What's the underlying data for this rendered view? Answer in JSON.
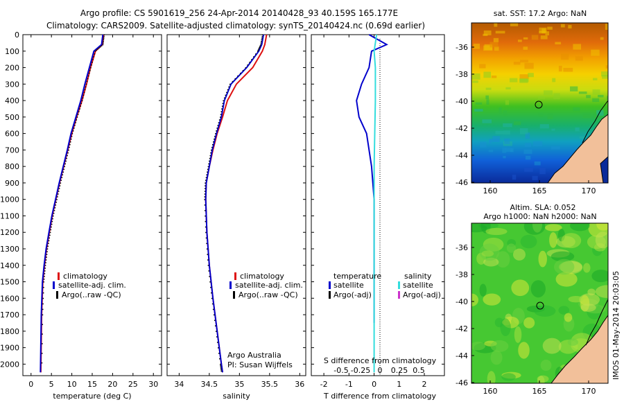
{
  "header": {
    "line1": "Argo profile: CS 5901619_256 24-Apr-2014 20140428_93 40.159S 165.177E",
    "line2": "Climatology: CARS2009. Satellite-adjusted climatology: synTS_20140424.nc (0.69d earlier)"
  },
  "side_stamp": "IMOS 01-May-2014 20:03:05",
  "colors": {
    "climatology": "#dd1111",
    "satellite": "#0000cc",
    "argo": "#000000",
    "satellite_salinity": "#33dddd",
    "argo_salinity": "#cc33cc",
    "land": "#f2c09a",
    "coast": "#000000"
  },
  "chart_data": [
    {
      "type": "line",
      "xlabel": "temperature (deg C)",
      "ylabel": "",
      "xlim": [
        -2,
        32
      ],
      "ylim": [
        2070,
        0
      ],
      "xticks": [
        0,
        5,
        10,
        15,
        20,
        25,
        30
      ],
      "yticks": [
        0,
        100,
        200,
        300,
        400,
        500,
        600,
        700,
        800,
        900,
        1000,
        1100,
        1200,
        1300,
        1400,
        1500,
        1600,
        1700,
        1800,
        1900,
        2000
      ],
      "legend": [
        "climatology",
        "satellite-adj. clim.",
        "Argo(..raw -QC)"
      ],
      "series": [
        {
          "name": "climatology",
          "x": [
            17.8,
            17.5,
            15.8,
            14.6,
            13.6,
            12.5,
            11.2,
            10.0,
            9.0,
            8.0,
            7.0,
            6.1,
            5.2,
            4.5,
            3.8,
            3.3,
            2.9,
            2.6,
            2.4
          ],
          "y": [
            0,
            60,
            100,
            200,
            300,
            400,
            500,
            600,
            700,
            800,
            900,
            1000,
            1100,
            1200,
            1300,
            1400,
            1500,
            1700,
            2050
          ]
        },
        {
          "name": "satellite-adj. clim.",
          "x": [
            17.6,
            17.3,
            15.4,
            14.3,
            13.2,
            12.2,
            11.0,
            9.8,
            8.9,
            7.9,
            6.9,
            6.0,
            5.1,
            4.4,
            3.7,
            3.2,
            2.8,
            2.5,
            2.3
          ],
          "y": [
            0,
            60,
            100,
            200,
            300,
            400,
            500,
            600,
            700,
            800,
            900,
            1000,
            1100,
            1200,
            1300,
            1400,
            1500,
            1700,
            2050
          ]
        }
      ]
    },
    {
      "type": "line",
      "xlabel": "salinity",
      "ylabel": "",
      "xlim": [
        33.8,
        36.1
      ],
      "ylim": [
        2070,
        0
      ],
      "xticks": [
        34,
        34.5,
        35,
        35.5,
        36
      ],
      "tick_labels": [
        "34",
        "34.5",
        "35",
        "35.5",
        "36"
      ],
      "legend": [
        "climatology",
        "satellite-adj. clim.",
        "Argo(..raw -QC)"
      ],
      "annotation": [
        "Argo Australia",
        "PI: Susan Wijffels"
      ],
      "series": [
        {
          "name": "climatology",
          "x": [
            35.45,
            35.42,
            35.38,
            35.22,
            34.95,
            34.8,
            34.72,
            34.63,
            34.56,
            34.5,
            34.45,
            34.44,
            34.46,
            34.5,
            34.56,
            34.63,
            34.7,
            34.72
          ],
          "y": [
            0,
            60,
            100,
            200,
            300,
            400,
            500,
            600,
            700,
            800,
            900,
            1000,
            1200,
            1400,
            1600,
            1800,
            2000,
            2050
          ]
        },
        {
          "name": "satellite-adj. clim.",
          "x": [
            35.4,
            35.37,
            35.32,
            35.12,
            34.86,
            34.75,
            34.7,
            34.62,
            34.55,
            34.5,
            34.45,
            34.44,
            34.46,
            34.5,
            34.56,
            34.63,
            34.7,
            34.72
          ],
          "y": [
            0,
            60,
            100,
            200,
            300,
            400,
            500,
            600,
            700,
            800,
            900,
            1000,
            1200,
            1400,
            1600,
            1800,
            2000,
            2050
          ]
        }
      ]
    },
    {
      "type": "line",
      "xlabel": "T difference from climatology",
      "xlabel_top": "S difference from climatology",
      "xlim": [
        -2.5,
        2.8
      ],
      "ylim": [
        2070,
        0
      ],
      "xticks": [
        -2,
        -1,
        0,
        1,
        2
      ],
      "top_ticks": [
        -0.5,
        -0.25,
        0,
        0.25,
        0.5
      ],
      "top_tick_labels": [
        "-0.5",
        "-0.25",
        "0",
        "0.25",
        "0.5"
      ],
      "legend": {
        "temperature_title": "temperature",
        "salinity_title": "salinity",
        "temperature_items": [
          "satellite",
          "Argo(-adj)"
        ],
        "salinity_items": [
          "satellite",
          "Argo(-adj)"
        ]
      },
      "series": [
        {
          "name": "temperature satellite",
          "x": [
            -0.2,
            0.5,
            -0.1,
            -0.2,
            -0.5,
            -0.7,
            -0.6,
            -0.3,
            -0.1,
            0.0,
            0.0
          ],
          "y": [
            0,
            60,
            100,
            200,
            300,
            400,
            500,
            600,
            800,
            1000,
            1750
          ]
        },
        {
          "name": "salinity satellite",
          "x": [
            0.1,
            0.0,
            0.05,
            0.05,
            0.0,
            0.0,
            0.0
          ],
          "y": [
            0,
            100,
            200,
            400,
            800,
            1500,
            2050
          ]
        }
      ]
    }
  ],
  "map_top": {
    "title": "sat. SST: 17.2 Argo: NaN",
    "yticks": [
      "-36",
      "-38",
      "-40",
      "-42",
      "-44",
      "-46"
    ],
    "xticks": [
      "160",
      "165",
      "170"
    ]
  },
  "map_bottom": {
    "title1": "Altim. SLA: 0.052",
    "title2": "Argo h1000: NaN h2000: NaN",
    "yticks": [
      "-36",
      "-38",
      "-40",
      "-42",
      "-44",
      "-46"
    ],
    "xticks": [
      "160",
      "165",
      "170"
    ]
  }
}
